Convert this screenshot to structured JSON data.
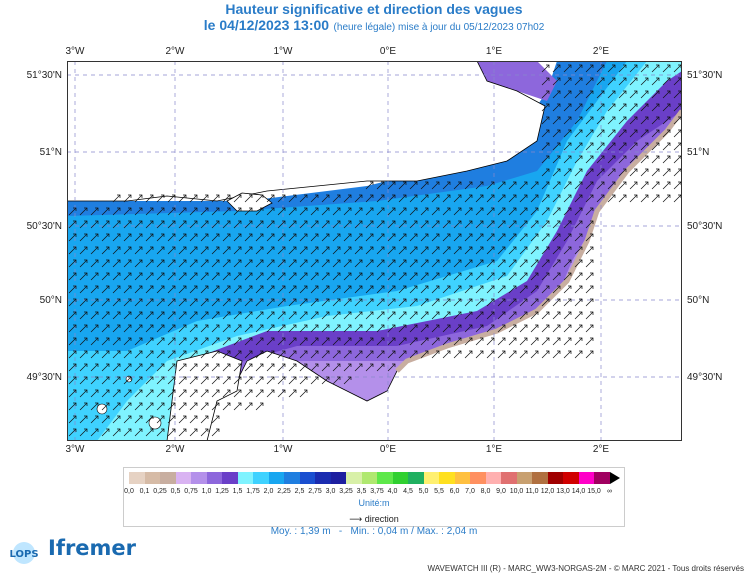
{
  "header": {
    "title": "Hauteur significative et direction des vagues",
    "date": "le 04/12/2023 13:00",
    "update": "(heure légale) mise à jour du 05/12/2023 07h02"
  },
  "axes": {
    "lon_ticks": [
      "3°W",
      "2°W",
      "1°W",
      "0°E",
      "1°E",
      "2°E"
    ],
    "lat_ticks": [
      "51°30'N",
      "51°N",
      "50°30'N",
      "50°N",
      "49°30'N"
    ]
  },
  "legend": {
    "values": [
      "0,0",
      "0,1",
      "0,25",
      "0,5",
      "0,75",
      "1,0",
      "1,25",
      "1,5",
      "1,75",
      "2,0",
      "2,25",
      "2,5",
      "2,75",
      "3,0",
      "3,25",
      "3,5",
      "3,75",
      "4,0",
      "4,5",
      "5,0",
      "5,5",
      "6,0",
      "7,0",
      "8,0",
      "9,0",
      "10,0",
      "11,0",
      "12,0",
      "13,0",
      "14,0",
      "15,0",
      "∞"
    ],
    "colors": [
      "#e6d2c3",
      "#d6bba6",
      "#c8aea0",
      "#d9b3f2",
      "#b490ea",
      "#8d67dc",
      "#6a3fc8",
      "#7ff3ff",
      "#3fd2ff",
      "#18a6f0",
      "#1f7ee0",
      "#1a4fd0",
      "#1a2cb0",
      "#1d1fa0",
      "#d8f0a8",
      "#b0e870",
      "#5ee84a",
      "#30d030",
      "#20b060",
      "#fff070",
      "#ffe020",
      "#ffc040",
      "#ff9060",
      "#ffb0b0",
      "#e07070",
      "#c8a070",
      "#b07040",
      "#a00000",
      "#d00000",
      "#ff00c8",
      "#a00060"
    ],
    "unit": "Unité:m",
    "direction": "direction"
  },
  "stats": {
    "mean": "Moy. : 1,39 m",
    "min": "Min. : 0,04 m",
    "max": "Max. : 2,04 m"
  },
  "footer": "WAVEWATCH III (R) - MARC_WW3-NORGAS-2M - © MARC 2021 - Tous droits réservés",
  "logos": {
    "lops": "LOPS",
    "ifremer": "Ifremer"
  }
}
